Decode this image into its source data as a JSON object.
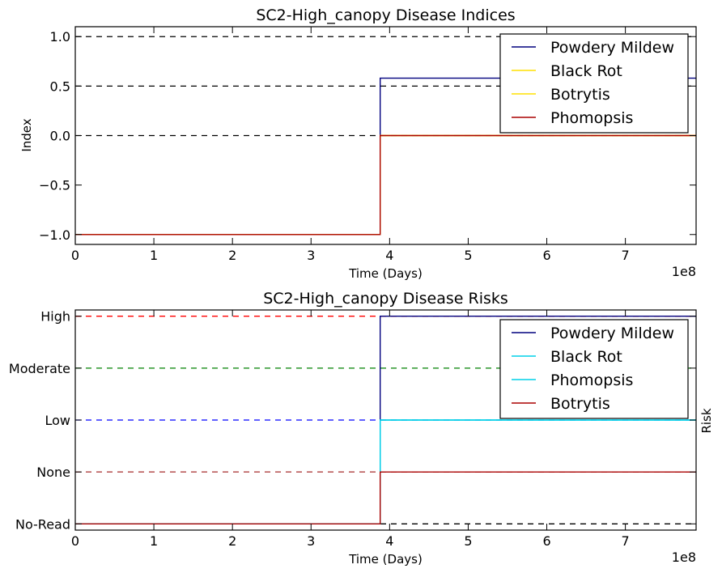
{
  "chart_data": [
    {
      "type": "line",
      "title": "SC2-High_canopy Disease Indices",
      "xlabel": "Time (Days)",
      "ylabel": "Index",
      "x_offset_label": "1e8",
      "xlim": [
        0,
        7.9
      ],
      "ylim": [
        -1.1,
        1.1
      ],
      "x_ticks": [
        0,
        1,
        2,
        3,
        4,
        5,
        6,
        7
      ],
      "x_tick_labels": [
        "0",
        "1",
        "2",
        "3",
        "4",
        "5",
        "6",
        "7"
      ],
      "y_ticks": [
        1.0,
        0.5,
        0.0,
        -0.5,
        -1.0
      ],
      "y_tick_labels": [
        "1.0",
        "0.5",
        "0.0",
        "−0.5",
        "−1.0"
      ],
      "reference_lines": [
        {
          "y": 1.0,
          "color": "#000000",
          "style": "dashed"
        },
        {
          "y": 0.5,
          "color": "#000000",
          "style": "dashed"
        },
        {
          "y": 0.0,
          "color": "#000000",
          "style": "dashed"
        }
      ],
      "series": [
        {
          "name": "Powdery Mildew",
          "color": "#00007f",
          "x": [
            0,
            3.88,
            3.88,
            7.9
          ],
          "y": [
            -1.0,
            -1.0,
            0.58,
            0.58
          ]
        },
        {
          "name": "Black Rot",
          "color": "#ffe000",
          "x": [
            0,
            3.88,
            3.88,
            7.9
          ],
          "y": [
            -1.0,
            -1.0,
            0.0,
            0.0
          ]
        },
        {
          "name": "Botrytis",
          "color": "#ffe000",
          "x": [
            0,
            3.88,
            3.88,
            7.9
          ],
          "y": [
            -1.0,
            -1.0,
            0.0,
            0.0
          ]
        },
        {
          "name": "Phomopsis",
          "color": "#aa0000",
          "x": [
            0,
            3.88,
            3.88,
            7.9
          ],
          "y": [
            -1.0,
            -1.0,
            0.0,
            0.0
          ]
        }
      ],
      "legend_loc": "top-right",
      "grid": false
    },
    {
      "type": "line",
      "title": "SC2-High_canopy Disease Risks",
      "xlabel": "Time (Days)",
      "ylabel": "Risk",
      "x_offset_label": "1e8",
      "xlim": [
        0,
        7.9
      ],
      "ylim": [
        -0.12,
        4.12
      ],
      "x_ticks": [
        0,
        1,
        2,
        3,
        4,
        5,
        6,
        7
      ],
      "x_tick_labels": [
        "0",
        "1",
        "2",
        "3",
        "4",
        "5",
        "6",
        "7"
      ],
      "y_ticks": [
        4,
        3,
        2,
        1,
        0
      ],
      "y_tick_labels": [
        "High",
        "Moderate",
        "Low",
        "None",
        "No-Read"
      ],
      "reference_lines": [
        {
          "y": 4,
          "color": "#ff0000",
          "style": "dashed"
        },
        {
          "y": 3,
          "color": "#008000",
          "style": "dashed"
        },
        {
          "y": 2,
          "color": "#0000ff",
          "style": "dashed"
        },
        {
          "y": 1,
          "color": "#a52a2a",
          "style": "dashed"
        },
        {
          "y": 0,
          "color": "#000000",
          "style": "dashed"
        }
      ],
      "series": [
        {
          "name": "Powdery Mildew",
          "color": "#00007f",
          "x": [
            0,
            3.88,
            3.88,
            7.9
          ],
          "y": [
            0,
            0,
            4,
            4
          ]
        },
        {
          "name": "Black Rot",
          "color": "#00d0e8",
          "x": [
            0,
            3.88,
            3.88,
            7.9
          ],
          "y": [
            0,
            0,
            2,
            2
          ]
        },
        {
          "name": "Phomopsis",
          "color": "#00d0e8",
          "x": [
            0,
            3.88,
            3.88,
            7.9
          ],
          "y": [
            0,
            0,
            2,
            2
          ]
        },
        {
          "name": "Botrytis",
          "color": "#aa0000",
          "x": [
            0,
            3.88,
            3.88,
            7.9
          ],
          "y": [
            0,
            0,
            1,
            1
          ]
        }
      ],
      "legend_loc": "top-right",
      "grid": false
    }
  ]
}
